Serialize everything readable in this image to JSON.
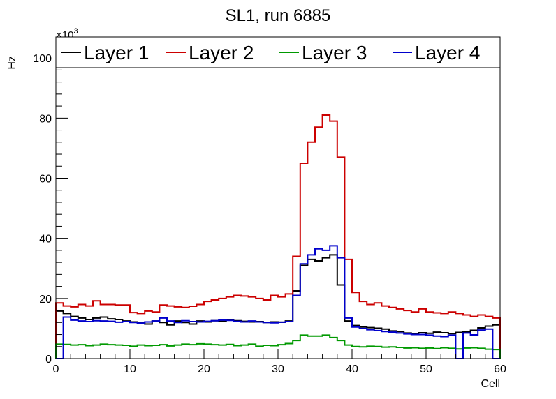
{
  "chart_data": {
    "type": "line",
    "title": "SL1, run 6885",
    "xlabel": "Cell",
    "ylabel": "Hz",
    "exponent_label": "×10",
    "exponent_power": "3",
    "xlim": [
      0,
      60
    ],
    "ylim": [
      0,
      107
    ],
    "x_ticks": [
      0,
      10,
      20,
      30,
      40,
      50,
      60
    ],
    "x_tick_labels": [
      "0",
      "10",
      "20",
      "30",
      "40",
      "50",
      "60"
    ],
    "y_ticks": [
      0,
      20,
      40,
      60,
      80,
      100
    ],
    "y_tick_labels": [
      "0",
      "20",
      "40",
      "60",
      "80",
      "100"
    ],
    "bin_width": 1,
    "legend_position": "top",
    "grid": false,
    "series": [
      {
        "name": "Layer 1",
        "color": "#000000",
        "values": [
          15.8,
          15.0,
          14.0,
          13.5,
          13.0,
          13.5,
          13.8,
          13.2,
          13.0,
          12.5,
          12.2,
          12.0,
          11.5,
          12.5,
          12.0,
          11.2,
          12.5,
          12.0,
          11.5,
          12.5,
          12.2,
          12.6,
          12.4,
          12.8,
          12.6,
          12.4,
          12.2,
          12.3,
          12.0,
          12.2,
          12.1,
          12.5,
          22.5,
          31.0,
          33.0,
          32.5,
          33.5,
          34.5,
          24.5,
          12.5,
          11.0,
          10.5,
          10.3,
          10.1,
          9.8,
          9.2,
          9.0,
          8.5,
          8.2,
          8.6,
          8.4,
          8.8,
          8.6,
          8.3,
          8.7,
          8.9,
          9.4,
          10.2,
          10.8,
          11.2
        ]
      },
      {
        "name": "Layer 2",
        "color": "#cc0000",
        "values": [
          18.5,
          17.5,
          17.2,
          18.0,
          17.5,
          19.2,
          18.0,
          18.0,
          17.8,
          17.8,
          15.3,
          15.0,
          15.8,
          15.5,
          17.8,
          17.5,
          17.2,
          17.0,
          17.4,
          18.0,
          19.0,
          19.5,
          20.0,
          20.5,
          21.0,
          20.8,
          20.5,
          20.0,
          19.5,
          21.0,
          20.5,
          21.5,
          34.0,
          65.0,
          72.0,
          77.0,
          81.0,
          79.0,
          67.0,
          33.0,
          22.0,
          19.0,
          18.0,
          18.5,
          17.5,
          17.0,
          16.5,
          16.0,
          15.5,
          16.5,
          15.5,
          15.2,
          15.0,
          15.5,
          15.0,
          14.5,
          14.0,
          14.5,
          14.0,
          13.5
        ]
      },
      {
        "name": "Layer 3",
        "color": "#009900",
        "values": [
          4.8,
          4.7,
          4.5,
          4.6,
          4.3,
          4.5,
          4.8,
          4.6,
          4.5,
          4.4,
          4.1,
          4.5,
          4.3,
          4.4,
          4.6,
          4.2,
          4.5,
          4.8,
          4.6,
          4.9,
          4.8,
          4.6,
          4.5,
          4.7,
          4.3,
          4.5,
          4.8,
          4.1,
          4.4,
          4.3,
          4.6,
          5.0,
          6.0,
          7.8,
          7.5,
          7.5,
          7.8,
          7.0,
          6.0,
          4.5,
          4.0,
          3.9,
          4.1,
          4.0,
          3.8,
          3.9,
          3.7,
          3.5,
          3.6,
          3.4,
          3.5,
          3.3,
          3.6,
          3.4,
          3.2,
          3.5,
          3.6,
          3.4,
          3.1,
          3.0
        ]
      },
      {
        "name": "Layer 4",
        "color": "#0000cc",
        "values": [
          0,
          13.8,
          12.8,
          12.5,
          12.3,
          12.6,
          12.5,
          12.4,
          12.1,
          12.3,
          12.0,
          11.8,
          12.2,
          12.5,
          13.5,
          12.5,
          12.0,
          12.6,
          12.3,
          12.2,
          12.4,
          12.6,
          12.8,
          12.7,
          12.4,
          12.2,
          12.5,
          12.2,
          12.0,
          11.9,
          12.1,
          12.3,
          21.0,
          31.5,
          34.5,
          36.5,
          36.0,
          37.5,
          33.5,
          13.5,
          10.5,
          10.0,
          9.6,
          9.3,
          9.0,
          8.8,
          8.5,
          8.2,
          8.0,
          8.0,
          7.8,
          7.5,
          7.3,
          7.8,
          0,
          8.5,
          7.9,
          9.5,
          9.8,
          0
        ]
      }
    ]
  }
}
